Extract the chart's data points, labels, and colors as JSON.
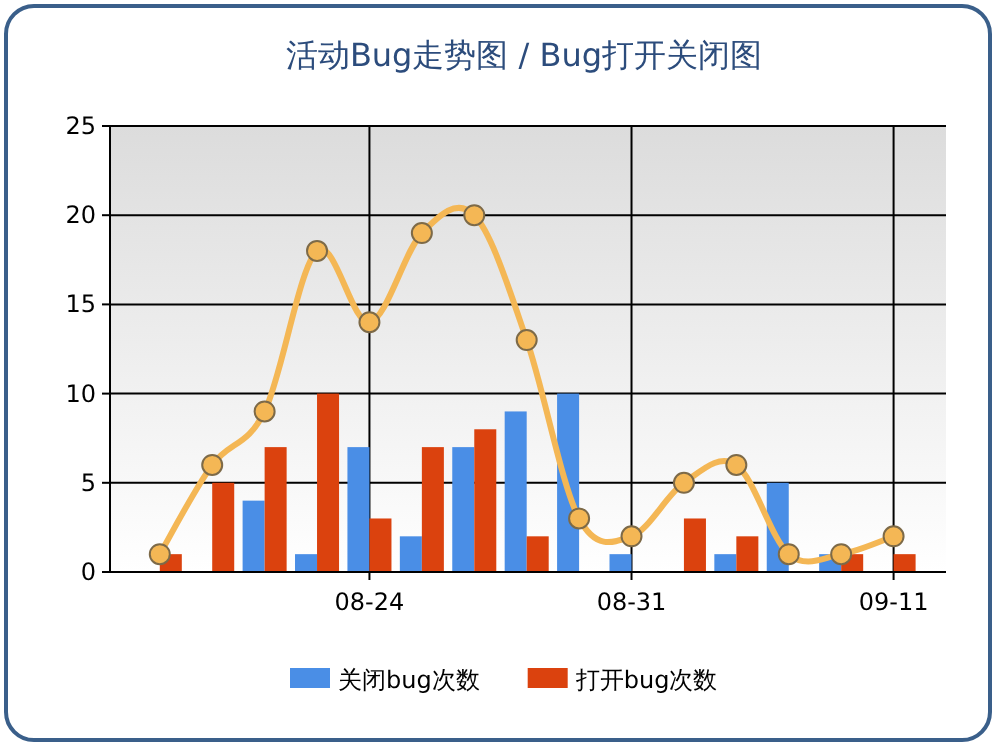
{
  "chart_data": {
    "type": "bar",
    "title": "活动Bug走势图 / Bug打开关闭图",
    "categories": [
      null,
      null,
      null,
      null,
      "08-24",
      null,
      null,
      null,
      null,
      "08-31",
      null,
      null,
      null,
      null,
      "09-11"
    ],
    "series": [
      {
        "name": "关闭bug次数",
        "color": "#4a8ee6",
        "values": [
          0,
          0,
          4,
          1,
          7,
          2,
          7,
          9,
          10,
          1,
          0,
          1,
          5,
          1,
          0
        ]
      },
      {
        "name": "打开bug次数",
        "color": "#db420e",
        "values": [
          1,
          5,
          7,
          10,
          3,
          7,
          8,
          2,
          0,
          0,
          3,
          2,
          0,
          1,
          1
        ]
      },
      {
        "type": "line",
        "color": "#f4b755",
        "marker": "circle",
        "values": [
          1,
          6,
          9,
          18,
          14,
          19,
          20,
          13,
          3,
          2,
          5,
          6,
          1,
          1,
          2
        ]
      }
    ],
    "ylim": [
      0,
      25
    ],
    "yticks": [
      0,
      5,
      10,
      15,
      20,
      25
    ],
    "grid": true,
    "legend": "bottom"
  }
}
